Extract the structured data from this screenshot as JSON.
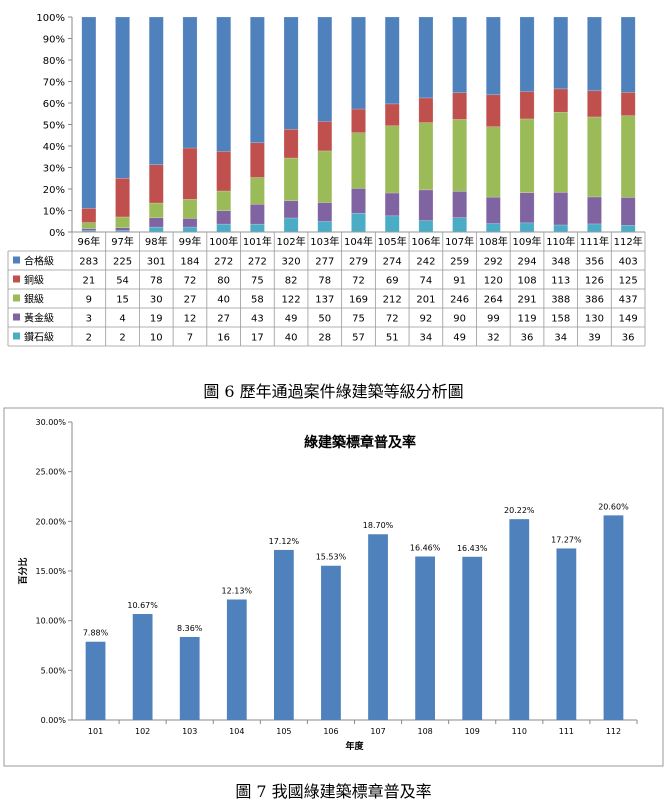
{
  "chart_data": [
    {
      "type": "bar",
      "stacked": "percent",
      "categories": [
        "96年",
        "97年",
        "98年",
        "99年",
        "100年",
        "101年",
        "102年",
        "103年",
        "104年",
        "105年",
        "106年",
        "107年",
        "108年",
        "109年",
        "110年",
        "111年",
        "112年"
      ],
      "y_ticks": [
        "0%",
        "10%",
        "20%",
        "30%",
        "40%",
        "50%",
        "60%",
        "70%",
        "80%",
        "90%",
        "100%"
      ],
      "ylim": [
        0,
        100
      ],
      "grid": false,
      "legend": "data-table-left",
      "series": [
        {
          "name": "鑽石級",
          "color": "#4BACC6",
          "values": [
            2,
            2,
            10,
            7,
            16,
            17,
            40,
            28,
            57,
            51,
            34,
            49,
            32,
            36,
            34,
            39,
            36
          ]
        },
        {
          "name": "黃金級",
          "color": "#8064A2",
          "values": [
            3,
            4,
            19,
            12,
            27,
            43,
            49,
            50,
            75,
            72,
            92,
            90,
            99,
            119,
            158,
            130,
            149
          ]
        },
        {
          "name": "銀級",
          "color": "#9BBB59",
          "values": [
            9,
            15,
            30,
            27,
            40,
            58,
            122,
            137,
            169,
            212,
            201,
            246,
            264,
            291,
            388,
            386,
            437
          ]
        },
        {
          "name": "銅級",
          "color": "#C0504D",
          "values": [
            21,
            54,
            78,
            72,
            80,
            75,
            82,
            78,
            72,
            69,
            74,
            91,
            120,
            108,
            113,
            126,
            125
          ]
        },
        {
          "name": "合格級",
          "color": "#4F81BD",
          "values": [
            283,
            225,
            301,
            184,
            272,
            272,
            320,
            277,
            279,
            274,
            242,
            259,
            292,
            294,
            348,
            356,
            403
          ]
        }
      ],
      "caption": "圖 6 歷年通過案件綠建築等級分析圖"
    },
    {
      "type": "bar",
      "title": "綠建築標章普及率",
      "xlabel": "年度",
      "ylabel": "百分比",
      "categories": [
        "101",
        "102",
        "103",
        "104",
        "105",
        "106",
        "107",
        "108",
        "109",
        "110",
        "111",
        "112"
      ],
      "values": [
        7.88,
        10.67,
        8.36,
        12.13,
        17.12,
        15.53,
        18.7,
        16.46,
        16.43,
        20.22,
        17.27,
        20.6
      ],
      "data_labels": [
        "7.88%",
        "10.67%",
        "8.36%",
        "12.13%",
        "17.12%",
        "15.53%",
        "18.70%",
        "16.46%",
        "16.43%",
        "20.22%",
        "17.27%",
        "20.60%"
      ],
      "y_ticks": [
        "0.00%",
        "5.00%",
        "10.00%",
        "15.00%",
        "20.00%",
        "25.00%",
        "30.00%"
      ],
      "ylim": [
        0,
        30
      ],
      "grid": false,
      "bar_color": "#4F81BD",
      "caption": "圖 7 我國綠建築標章普及率"
    }
  ]
}
